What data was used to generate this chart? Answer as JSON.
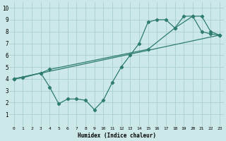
{
  "bg_color": "#cce8e8",
  "grid_color": "#aacfcf",
  "line_color": "#2e7d6e",
  "line_width": 0.9,
  "marker": "D",
  "marker_size": 2.2,
  "xlim": [
    -0.5,
    23.5
  ],
  "ylim": [
    0,
    10.5
  ],
  "xticks": [
    0,
    1,
    2,
    3,
    4,
    5,
    6,
    7,
    8,
    9,
    10,
    11,
    12,
    13,
    14,
    15,
    16,
    17,
    18,
    19,
    20,
    21,
    22,
    23
  ],
  "yticks": [
    1,
    2,
    3,
    4,
    5,
    6,
    7,
    8,
    9,
    10
  ],
  "xlabel": "Humidex (Indice chaleur)",
  "series": [
    {
      "x": [
        0,
        1,
        3,
        4,
        5,
        6,
        7,
        8,
        9,
        10,
        11,
        12,
        13,
        14,
        15,
        16,
        17,
        18,
        19,
        20,
        21,
        22,
        23
      ],
      "y": [
        4,
        4.1,
        4.5,
        3.3,
        1.9,
        2.3,
        2.3,
        2.2,
        1.4,
        2.2,
        3.7,
        5.0,
        6.0,
        7.0,
        8.8,
        9.0,
        9.0,
        8.3,
        9.3,
        9.3,
        8.0,
        7.8,
        7.7
      ]
    },
    {
      "x": [
        0,
        3,
        4,
        15,
        18,
        20,
        21,
        22,
        23
      ],
      "y": [
        4,
        4.5,
        4.8,
        6.5,
        8.3,
        9.3,
        9.3,
        8.0,
        7.7
      ]
    },
    {
      "x": [
        0,
        23
      ],
      "y": [
        4,
        7.7
      ]
    }
  ]
}
